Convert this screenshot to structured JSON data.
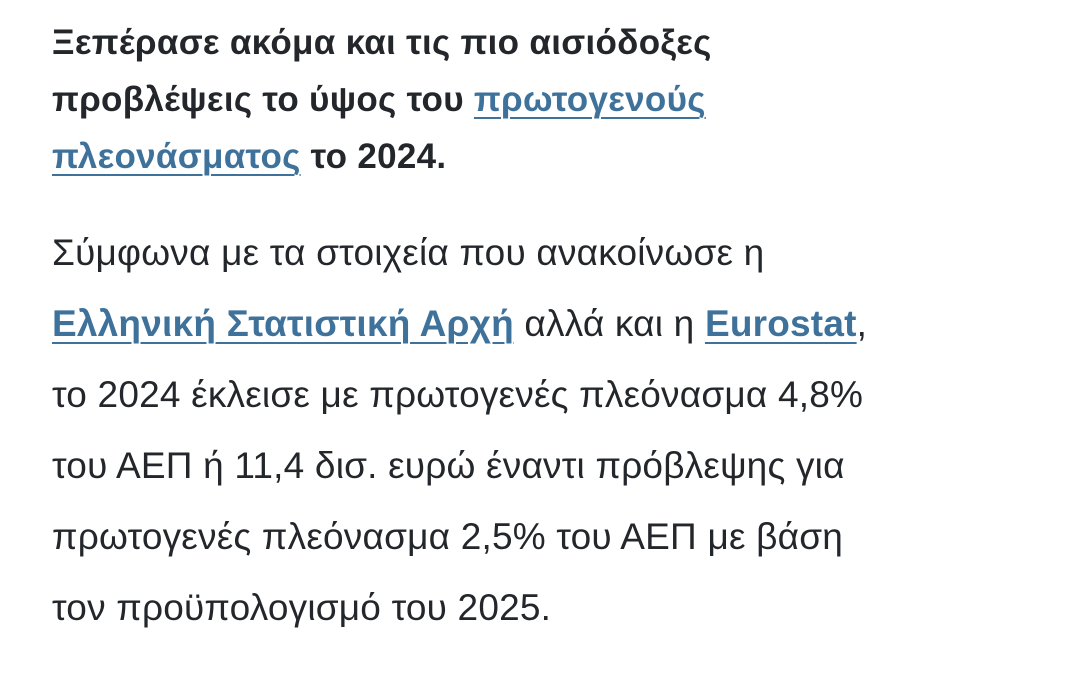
{
  "article": {
    "headline": {
      "line1": "Ξεπέρασε ακόμα και τις πιο αισιόδοξες",
      "line2_pre": "προβλέψεις το ύψος του ",
      "link_a": "πρωτογενούς",
      "link_b": "πλεονάσματος",
      "line3_post": " το 2024."
    },
    "paragraph": {
      "line1": "Σύμφωνα με τα στοιχεία που ανακοίνωσε η",
      "link_elstat": "Ελληνική Στατιστική Αρχή",
      "mid": " αλλά και η ",
      "link_eurostat": "Eurostat",
      "comma": ",",
      "line3": "το 2024 έκλεισε με πρωτογενές πλεόνασμα 4,8%",
      "line4": "του ΑΕΠ ή 11,4 δισ. ευρώ έναντι πρόβλεψης για",
      "line5": "πρωτογενές πλεόνασμα 2,5% του ΑΕΠ με βάση",
      "line6": "τον προϋπολογισμό του 2025."
    },
    "colors": {
      "text": "#23272b",
      "link": "#3f729b"
    }
  }
}
